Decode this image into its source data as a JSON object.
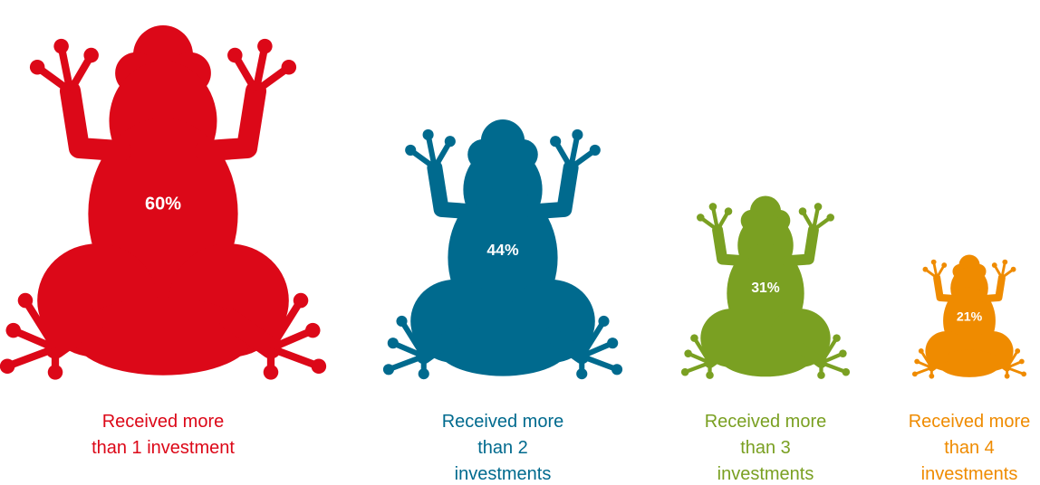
{
  "chart_data": {
    "type": "pictogram",
    "categories": [
      "Received more than 1 investment",
      "Received more than 2 investments",
      "Received more than 3 investments",
      "Received more than 4 investments"
    ],
    "values": [
      60,
      44,
      31,
      21
    ],
    "value_labels": [
      "60%",
      "44%",
      "31%",
      "21%"
    ],
    "colors": [
      "#dc0818",
      "#006a8e",
      "#7aa022",
      "#ef8b00"
    ]
  }
}
